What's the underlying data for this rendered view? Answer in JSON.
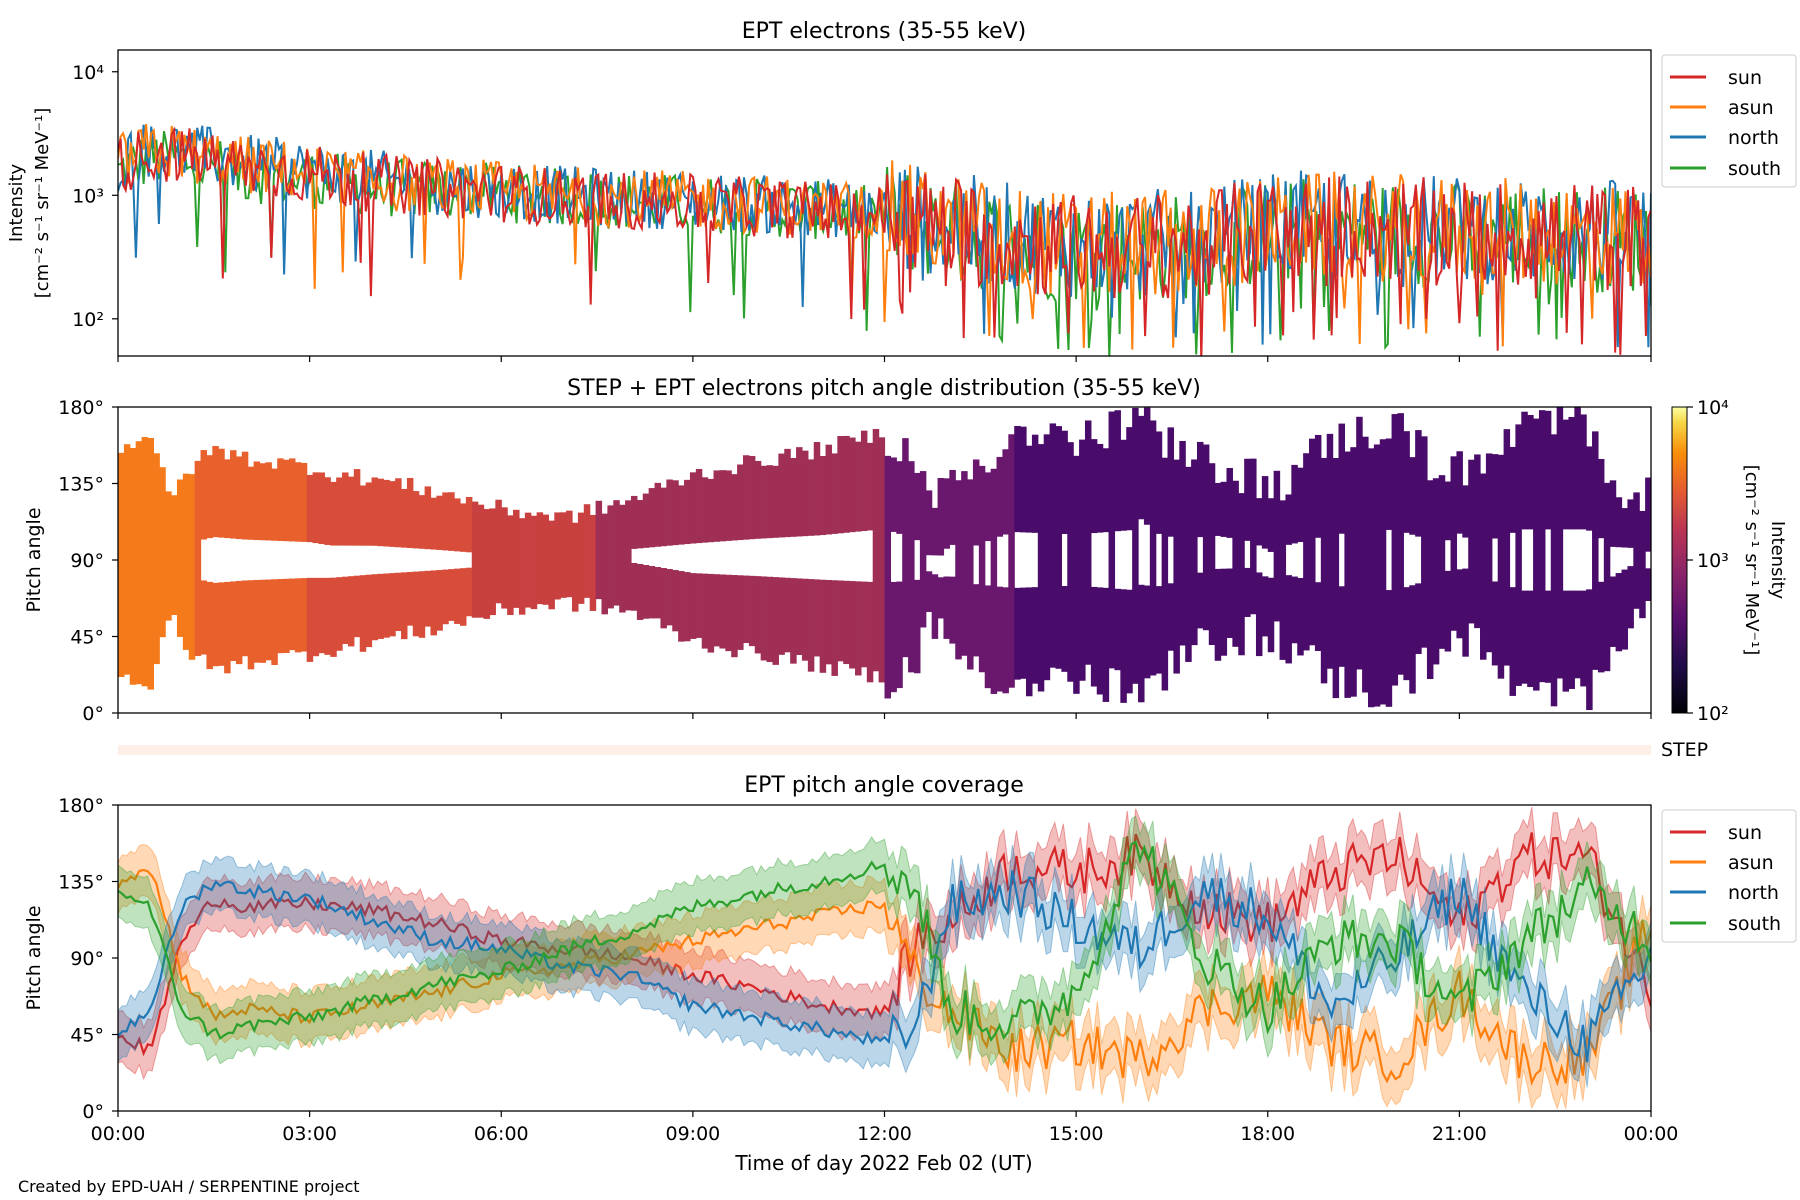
{
  "footer": "Created by EPD-UAH / SERPENTINE project",
  "colors": {
    "sun": "#d62728",
    "asun": "#ff7f0e",
    "north": "#1f77b4",
    "south": "#2ca02c"
  },
  "chart_data": [
    {
      "type": "line",
      "title": "EPT electrons (35-55 keV)",
      "ylabel_line1": "Intensity",
      "ylabel_line2": "[cm⁻² s⁻¹ sr⁻¹ MeV⁻¹]",
      "yscale": "log",
      "ylim": [
        50,
        15000
      ],
      "ytick_labels": [
        "10²",
        "10³",
        "10⁴"
      ],
      "ytick_values": [
        100,
        1000,
        10000
      ],
      "xlim_hours": [
        0,
        24
      ],
      "legend": [
        "sun",
        "asun",
        "north",
        "south"
      ],
      "legend_position": "outside-right-top",
      "trend_hours": [
        0,
        0.5,
        1,
        2,
        3,
        4,
        5,
        6,
        7,
        8,
        9,
        10,
        11,
        12,
        13,
        14,
        15,
        16,
        17,
        18,
        19,
        20,
        21,
        22,
        23,
        24
      ],
      "series": [
        {
          "name": "sun",
          "approx_median": [
            1700,
            2200,
            2100,
            1700,
            1500,
            1250,
            1150,
            1050,
            950,
            900,
            850,
            800,
            750,
            700,
            550,
            430,
            380,
            380,
            420,
            520,
            560,
            520,
            500,
            480,
            470,
            450
          ]
        },
        {
          "name": "asun",
          "approx_median": [
            1800,
            2300,
            2200,
            1750,
            1550,
            1300,
            1200,
            1100,
            1000,
            950,
            900,
            850,
            800,
            720,
            560,
            440,
            390,
            390,
            430,
            530,
            570,
            540,
            520,
            500,
            490,
            470
          ]
        },
        {
          "name": "north",
          "approx_median": [
            1800,
            2400,
            2300,
            1800,
            1600,
            1350,
            1200,
            1100,
            1000,
            950,
            900,
            850,
            800,
            730,
            580,
            460,
            400,
            400,
            450,
            550,
            600,
            560,
            530,
            510,
            500,
            480
          ]
        },
        {
          "name": "south",
          "approx_median": [
            1500,
            2000,
            1900,
            1500,
            1350,
            1150,
            1100,
            1050,
            950,
            900,
            850,
            800,
            750,
            680,
            520,
            400,
            360,
            360,
            400,
            500,
            530,
            500,
            480,
            460,
            450,
            430
          ]
        }
      ]
    },
    {
      "type": "heatmap",
      "title": "STEP + EPT electrons pitch angle distribution (35-55 keV)",
      "ylabel": "Pitch angle",
      "ylim": [
        0,
        180
      ],
      "ytick_labels": [
        "0°",
        "45°",
        "90°",
        "135°",
        "180°"
      ],
      "colorbar_label_line1": "Intensity",
      "colorbar_label_line2": "[cm⁻² s⁻¹ sr⁻¹ MeV⁻¹]",
      "colorbar_scale": "log",
      "colorbar_range": [
        100,
        10000
      ],
      "colorbar_tick_labels": [
        "10²",
        "10³",
        "10⁴"
      ],
      "colormap": "inferno"
    },
    {
      "type": "heatmap",
      "label": "STEP",
      "note": "thin STEP strip"
    },
    {
      "type": "line",
      "title": "EPT pitch angle coverage",
      "ylabel": "Pitch angle",
      "ylim": [
        0,
        180
      ],
      "ytick_labels": [
        "0°",
        "45°",
        "90°",
        "135°",
        "180°"
      ],
      "xlabel": "Time of day 2022 Feb 02 (UT)",
      "xtick_labels": [
        "00:00",
        "03:00",
        "06:00",
        "09:00",
        "12:00",
        "15:00",
        "18:00",
        "21:00",
        "00:00"
      ],
      "xtick_hours": [
        0,
        3,
        6,
        9,
        12,
        15,
        18,
        21,
        24
      ],
      "legend": [
        "sun",
        "asun",
        "north",
        "south"
      ],
      "legend_position": "outside-right-top",
      "x_hours": [
        0,
        0.5,
        1,
        1.5,
        2,
        3,
        4,
        5,
        5.5,
        6,
        7,
        8,
        9,
        10,
        11,
        12,
        12.5,
        13,
        14,
        15,
        16,
        17,
        18,
        19,
        20,
        21,
        22,
        23,
        24
      ],
      "series": [
        {
          "name": "sun",
          "values": [
            45,
            35,
            100,
            125,
            120,
            122,
            118,
            110,
            105,
            100,
            95,
            90,
            80,
            72,
            62,
            58,
            100,
            110,
            145,
            140,
            150,
            120,
            110,
            140,
            150,
            110,
            150,
            150,
            70
          ]
        },
        {
          "name": "asun",
          "values": [
            135,
            145,
            80,
            55,
            60,
            55,
            62,
            70,
            75,
            80,
            85,
            92,
            100,
            108,
            115,
            122,
            80,
            60,
            35,
            40,
            30,
            60,
            70,
            40,
            30,
            70,
            30,
            30,
            110
          ]
        },
        {
          "name": "north",
          "values": [
            45,
            60,
            120,
            135,
            130,
            125,
            112,
            100,
            98,
            95,
            85,
            80,
            62,
            55,
            48,
            40,
            50,
            120,
            130,
            110,
            95,
            130,
            115,
            60,
            90,
            130,
            70,
            40,
            90
          ]
        },
        {
          "name": "south",
          "values": [
            130,
            120,
            60,
            45,
            50,
            55,
            65,
            75,
            78,
            82,
            95,
            105,
            120,
            128,
            135,
            145,
            130,
            60,
            50,
            70,
            160,
            90,
            60,
            100,
            100,
            60,
            100,
            130,
            100
          ]
        }
      ]
    }
  ]
}
